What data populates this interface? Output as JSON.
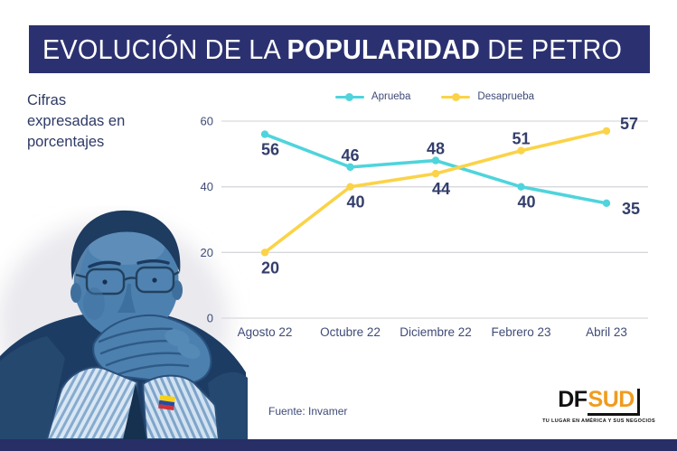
{
  "banner": {
    "title_prefix": "EVOLUCIÓN DE LA ",
    "title_bold": "POPULARIDAD",
    "title_suffix": " DE PETRO",
    "bg_color": "#2b3170"
  },
  "caption": {
    "text": "Cifras\nexpresadas en\nporcentajes"
  },
  "chart_data": {
    "type": "line",
    "title": "EVOLUCIÓN DE LA POPULARIDAD DE PETRO",
    "categories": [
      "Agosto 22",
      "Octubre 22",
      "Diciembre 22",
      "Febrero 23",
      "Abril 23"
    ],
    "series": [
      {
        "name": "Aprueba",
        "color": "#4fd4dc",
        "values": [
          56,
          46,
          48,
          40,
          35
        ],
        "label_pos": [
          "below",
          "above",
          "above",
          "below",
          "right"
        ]
      },
      {
        "name": "Desaprueba",
        "color": "#fbd348",
        "values": [
          20,
          40,
          44,
          51,
          57
        ],
        "label_pos": [
          "below",
          "below",
          "below",
          "above",
          "above-right"
        ]
      }
    ],
    "xlabel": "",
    "ylabel": "",
    "yticks": [
      0,
      20,
      40,
      60
    ],
    "ylim": [
      0,
      60
    ],
    "grid": true,
    "legend_position": "top",
    "units": "percent"
  },
  "source": "Fuente: Invamer",
  "logo": {
    "df": "DF",
    "sud": "SUD",
    "tagline": "TU LUGAR EN AMÉRICA Y SUS NEGOCIOS"
  },
  "colors": {
    "approve": "#4fd4dc",
    "disapprove": "#fbd348",
    "value_label": "#333e6b",
    "axis_label": "#3f4b77",
    "gridline": "#d9d9dd",
    "banner": "#2b3170",
    "bottom_bar": "#272f66"
  }
}
